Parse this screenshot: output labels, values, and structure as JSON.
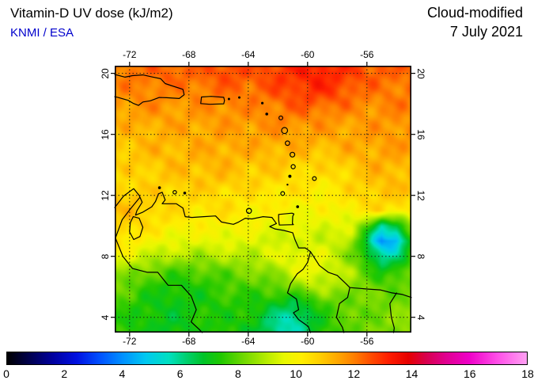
{
  "header": {
    "title": "Vitamin-D UV dose (kJ/m2)",
    "source": "KNMI / ESA",
    "product": "Cloud-modified",
    "date": "7 July 2021"
  },
  "colors": {
    "source_text": "#0000cc",
    "frame": "#000000",
    "background": "#ffffff"
  },
  "chart_data": {
    "type": "heatmap",
    "title": "Vitamin-D UV dose (kJ/m2)",
    "subtitle": "Cloud-modified, 7 July 2021",
    "units": "kJ/m2",
    "lon_range": [
      -73,
      -53
    ],
    "lat_range": [
      3,
      20.5
    ],
    "x_ticks": [
      -72,
      -68,
      -64,
      -60,
      -56
    ],
    "x_tick_labels": [
      "-72",
      "-68",
      "-64",
      "-60",
      "-56"
    ],
    "y_ticks": [
      20,
      16,
      12,
      8,
      4
    ],
    "y_tick_labels": [
      "20",
      "16",
      "12",
      "8",
      "4"
    ],
    "grid": {
      "dotted": true,
      "lons": [
        -72,
        -68,
        -64,
        -60,
        -56
      ],
      "lats": [
        4,
        8,
        12,
        16,
        20
      ]
    },
    "grid_values": {
      "lons_start": -73,
      "lons_step": 1,
      "lats_start": 21,
      "lats_step": -1,
      "values": [
        [
          12.0,
          12.1,
          12.2,
          12.3,
          12.3,
          12.3,
          12.4,
          12.6,
          12.7,
          12.5,
          12.6,
          12.9,
          13.1,
          13.3,
          13.3,
          13.1,
          12.8,
          12.5,
          12.4,
          12.3,
          12.3
        ],
        [
          12.0,
          12.1,
          12.2,
          12.3,
          12.4,
          12.3,
          12.4,
          12.6,
          12.7,
          12.5,
          12.6,
          12.8,
          13.0,
          13.2,
          13.2,
          13.0,
          12.8,
          12.5,
          12.4,
          12.3,
          12.3
        ],
        [
          11.8,
          11.9,
          12.0,
          12.0,
          12.0,
          12.0,
          12.1,
          12.2,
          12.3,
          12.2,
          12.4,
          12.6,
          12.8,
          13.0,
          13.0,
          12.8,
          12.5,
          12.2,
          12.1,
          12.1,
          12.1
        ],
        [
          11.6,
          11.7,
          11.8,
          11.8,
          11.7,
          11.7,
          11.8,
          11.9,
          12.0,
          11.9,
          12.0,
          12.2,
          12.4,
          12.5,
          12.4,
          12.3,
          12.0,
          11.9,
          11.9,
          12.0,
          12.0
        ],
        [
          11.4,
          11.4,
          11.5,
          11.5,
          11.5,
          11.5,
          11.6,
          11.6,
          11.7,
          11.7,
          11.8,
          11.9,
          11.9,
          11.9,
          11.8,
          11.7,
          11.6,
          11.6,
          11.7,
          11.8,
          11.8
        ],
        [
          11.0,
          11.1,
          11.2,
          11.3,
          11.3,
          11.4,
          11.4,
          11.5,
          11.5,
          11.5,
          11.6,
          11.6,
          11.6,
          11.5,
          11.5,
          11.4,
          11.5,
          11.6,
          11.6,
          11.7,
          11.7
        ],
        [
          10.9,
          11.0,
          11.1,
          11.2,
          11.2,
          11.3,
          11.3,
          11.4,
          11.4,
          11.3,
          11.3,
          11.3,
          11.2,
          11.2,
          11.1,
          11.2,
          11.3,
          11.4,
          11.5,
          11.5,
          11.5
        ],
        [
          10.7,
          10.8,
          10.9,
          11.0,
          11.1,
          11.1,
          11.2,
          11.2,
          11.1,
          11.0,
          11.0,
          10.9,
          10.8,
          10.7,
          10.6,
          10.8,
          11.0,
          11.2,
          11.3,
          11.3,
          11.2
        ],
        [
          10.5,
          10.6,
          10.7,
          10.8,
          10.9,
          11.0,
          11.0,
          11.0,
          10.9,
          10.8,
          10.7,
          10.6,
          10.5,
          10.4,
          10.3,
          10.4,
          10.7,
          11.0,
          11.1,
          11.1,
          11.0
        ],
        [
          11.0,
          10.9,
          10.8,
          10.7,
          10.6,
          10.6,
          10.6,
          10.6,
          10.5,
          10.4,
          10.4,
          10.3,
          10.3,
          10.2,
          10.2,
          10.3,
          10.5,
          10.8,
          10.9,
          10.9,
          10.8
        ],
        [
          11.0,
          11.0,
          10.9,
          10.7,
          10.5,
          10.4,
          10.4,
          10.5,
          10.4,
          10.2,
          10.1,
          10.0,
          10.0,
          9.9,
          9.9,
          10.0,
          10.2,
          10.4,
          10.5,
          10.4,
          10.3
        ],
        [
          10.8,
          10.7,
          10.5,
          10.3,
          10.2,
          10.1,
          10.0,
          10.1,
          10.0,
          9.9,
          9.8,
          9.7,
          9.6,
          9.6,
          9.5,
          9.6,
          9.3,
          8.0,
          6.0,
          6.5,
          8.5
        ],
        [
          10.5,
          10.3,
          10.0,
          9.8,
          9.7,
          9.6,
          9.6,
          9.7,
          9.6,
          9.5,
          9.4,
          9.3,
          9.2,
          9.3,
          9.2,
          9.3,
          8.8,
          6.5,
          4.0,
          4.5,
          7.5
        ],
        [
          9.8,
          9.6,
          9.3,
          9.0,
          8.9,
          8.8,
          8.8,
          8.9,
          9.0,
          9.0,
          9.2,
          9.5,
          9.8,
          9.8,
          9.5,
          9.0,
          8.3,
          7.0,
          5.8,
          6.2,
          7.8
        ],
        [
          8.8,
          8.5,
          8.2,
          8.0,
          7.8,
          7.8,
          7.9,
          8.0,
          8.2,
          8.3,
          8.5,
          8.8,
          9.3,
          9.8,
          9.6,
          9.2,
          8.8,
          8.0,
          7.2,
          7.4,
          8.0
        ],
        [
          8.2,
          8.0,
          7.6,
          7.4,
          7.2,
          7.3,
          7.4,
          7.6,
          7.8,
          7.8,
          7.9,
          8.0,
          8.3,
          8.8,
          9.0,
          8.8,
          8.5,
          8.2,
          8.0,
          8.0,
          8.2
        ],
        [
          7.8,
          7.6,
          7.3,
          7.2,
          7.0,
          7.2,
          7.3,
          7.4,
          7.5,
          7.4,
          7.3,
          7.0,
          6.8,
          7.2,
          7.8,
          8.0,
          8.2,
          8.2,
          8.2,
          8.3,
          8.4
        ],
        [
          7.6,
          7.4,
          7.2,
          7.0,
          7.0,
          7.2,
          7.3,
          7.4,
          7.4,
          7.2,
          6.8,
          6.0,
          5.6,
          6.5,
          7.4,
          7.8,
          8.0,
          8.2,
          8.3,
          8.4,
          8.5
        ],
        [
          7.5,
          7.4,
          7.2,
          7.0,
          7.0,
          7.2,
          7.3,
          7.4,
          7.3,
          7.0,
          6.5,
          5.8,
          5.5,
          6.4,
          7.3,
          7.8,
          8.0,
          8.2,
          8.3,
          8.4,
          8.5
        ]
      ]
    },
    "colorbar": {
      "min": 0,
      "max": 18,
      "ticks": [
        0,
        2,
        4,
        6,
        8,
        10,
        12,
        14,
        16,
        18
      ],
      "stops": [
        [
          0,
          "#000000"
        ],
        [
          0.8,
          "#000050"
        ],
        [
          1.6,
          "#0000a0"
        ],
        [
          2.4,
          "#0010e0"
        ],
        [
          3.2,
          "#0050ff"
        ],
        [
          4,
          "#0090ff"
        ],
        [
          4.8,
          "#00c8f0"
        ],
        [
          5.6,
          "#00e0c0"
        ],
        [
          6.2,
          "#00d070"
        ],
        [
          6.8,
          "#00c428"
        ],
        [
          7.4,
          "#20c800"
        ],
        [
          8.2,
          "#70d800"
        ],
        [
          9,
          "#b8ec00"
        ],
        [
          9.6,
          "#e8f800"
        ],
        [
          10.2,
          "#ffee00"
        ],
        [
          10.8,
          "#ffd000"
        ],
        [
          11.4,
          "#ffaa00"
        ],
        [
          12,
          "#ff8000"
        ],
        [
          12.6,
          "#ff4c00"
        ],
        [
          13.2,
          "#ff1e00"
        ],
        [
          13.9,
          "#e60000"
        ],
        [
          14.5,
          "#d8004c"
        ],
        [
          15.2,
          "#e00090"
        ],
        [
          16,
          "#ee00c8"
        ],
        [
          17,
          "#ff50e8"
        ],
        [
          18,
          "#ffa0f2"
        ]
      ]
    },
    "coastlines": [
      [
        [
          -73,
          19.93
        ],
        [
          -72.3,
          19.75
        ],
        [
          -71.8,
          19.85
        ],
        [
          -71.1,
          19.9
        ],
        [
          -70.5,
          19.77
        ],
        [
          -69.9,
          19.65
        ],
        [
          -69.6,
          19.33
        ],
        [
          -69.2,
          19.2
        ],
        [
          -68.4,
          18.95
        ],
        [
          -68.32,
          18.6
        ],
        [
          -68.65,
          18.35
        ],
        [
          -69.5,
          18.4
        ],
        [
          -70.0,
          18.42
        ],
        [
          -70.6,
          18.2
        ],
        [
          -71.1,
          18.12
        ],
        [
          -71.4,
          17.9
        ],
        [
          -71.76,
          18.04
        ],
        [
          -72.1,
          18.23
        ],
        [
          -72.8,
          18.43
        ],
        [
          -73,
          18.47
        ]
      ],
      [
        [
          -67.15,
          18.45
        ],
        [
          -66.5,
          18.49
        ],
        [
          -65.65,
          18.43
        ],
        [
          -65.6,
          18.22
        ],
        [
          -65.65,
          18.0
        ],
        [
          -66.6,
          17.97
        ],
        [
          -67.2,
          18.02
        ],
        [
          -67.15,
          18.45
        ]
      ],
      [
        [
          -61.95,
          10.75
        ],
        [
          -61.05,
          10.83
        ],
        [
          -60.92,
          10.78
        ],
        [
          -61.0,
          10.62
        ],
        [
          -61.02,
          10.15
        ],
        [
          -60.95,
          10.08
        ],
        [
          -61.9,
          10.05
        ],
        [
          -61.95,
          10.4
        ],
        [
          -61.95,
          10.75
        ]
      ],
      [
        [
          -73,
          11.2
        ],
        [
          -72.4,
          11.95
        ],
        [
          -71.72,
          12.44
        ],
        [
          -71.35,
          12.0
        ],
        [
          -71.15,
          11.55
        ],
        [
          -71.5,
          11.0
        ],
        [
          -71.6,
          10.7
        ],
        [
          -71.1,
          10.9
        ],
        [
          -70.5,
          11.25
        ],
        [
          -70.25,
          11.6
        ],
        [
          -70.05,
          12.1
        ],
        [
          -69.8,
          12.2
        ],
        [
          -69.6,
          11.7
        ],
        [
          -69.8,
          11.45
        ],
        [
          -69.2,
          11.45
        ],
        [
          -68.85,
          11.45
        ],
        [
          -68.4,
          11.17
        ],
        [
          -68.25,
          10.6
        ],
        [
          -67.8,
          10.55
        ],
        [
          -67.0,
          10.6
        ],
        [
          -66.2,
          10.65
        ],
        [
          -65.8,
          10.25
        ],
        [
          -65.0,
          10.1
        ],
        [
          -64.65,
          10.25
        ],
        [
          -64.2,
          10.5
        ],
        [
          -63.75,
          10.45
        ],
        [
          -63.0,
          10.6
        ],
        [
          -62.4,
          10.55
        ],
        [
          -62.1,
          10.15
        ],
        [
          -62.55,
          9.95
        ],
        [
          -62.2,
          9.8
        ],
        [
          -61.6,
          9.7
        ],
        [
          -61.0,
          9.55
        ],
        [
          -60.85,
          9.1
        ],
        [
          -60.6,
          8.55
        ],
        [
          -60.15,
          8.55
        ],
        [
          -59.8,
          8.3
        ],
        [
          -59.2,
          7.4
        ],
        [
          -58.6,
          6.95
        ],
        [
          -58.0,
          6.75
        ],
        [
          -57.4,
          6.2
        ],
        [
          -57.15,
          5.95
        ],
        [
          -56.5,
          5.9
        ],
        [
          -55.9,
          5.85
        ],
        [
          -55.1,
          5.8
        ],
        [
          -54.3,
          5.6
        ],
        [
          -53.6,
          5.5
        ],
        [
          -53,
          5.3
        ]
      ],
      [
        [
          -71.75,
          10.6
        ],
        [
          -71.35,
          10.5
        ],
        [
          -71.1,
          9.9
        ],
        [
          -71.3,
          9.3
        ],
        [
          -71.72,
          9.1
        ],
        [
          -72.0,
          9.6
        ],
        [
          -71.95,
          10.2
        ],
        [
          -71.75,
          10.6
        ]
      ]
    ],
    "borders": [
      [
        [
          -71.32,
          11.85
        ],
        [
          -71.95,
          11.1
        ],
        [
          -72.5,
          10.4
        ],
        [
          -72.95,
          9.2
        ],
        [
          -72.7,
          8.6
        ],
        [
          -72.45,
          8.0
        ],
        [
          -71.8,
          7.2
        ],
        [
          -70.8,
          6.95
        ],
        [
          -70.1,
          6.95
        ],
        [
          -69.4,
          6.1
        ],
        [
          -68.5,
          6.1
        ],
        [
          -67.85,
          5.4
        ],
        [
          -67.5,
          4.5
        ],
        [
          -67.85,
          3.7
        ],
        [
          -67.3,
          3.2
        ],
        [
          -67.1,
          3.0
        ]
      ],
      [
        [
          -59.8,
          8.3
        ],
        [
          -60.0,
          7.6
        ],
        [
          -60.3,
          7.15
        ],
        [
          -60.7,
          6.85
        ],
        [
          -61.15,
          6.2
        ],
        [
          -61.35,
          5.6
        ],
        [
          -60.75,
          5.2
        ],
        [
          -60.6,
          4.5
        ],
        [
          -60.95,
          4.3
        ],
        [
          -60.6,
          3.85
        ],
        [
          -59.95,
          3.4
        ],
        [
          -59.8,
          3.0
        ]
      ],
      [
        [
          -57.15,
          5.95
        ],
        [
          -57.3,
          5.3
        ],
        [
          -57.85,
          4.9
        ],
        [
          -58.05,
          4.0
        ],
        [
          -57.65,
          3.35
        ],
        [
          -57.55,
          3.0
        ]
      ],
      [
        [
          -54.0,
          5.6
        ],
        [
          -54.45,
          4.9
        ],
        [
          -54.35,
          4.0
        ],
        [
          -54.15,
          3.3
        ],
        [
          -54.2,
          3.0
        ]
      ]
    ],
    "islands": [
      [
        -65.3,
        18.32,
        1.5
      ],
      [
        -64.6,
        18.42,
        1.5
      ],
      [
        -63.05,
        18.05,
        1.6
      ],
      [
        -62.75,
        17.33,
        1.8
      ],
      [
        -61.8,
        17.08,
        2.4
      ],
      [
        -61.55,
        16.25,
        3.8
      ],
      [
        -61.35,
        15.42,
        2.8
      ],
      [
        -61.02,
        14.67,
        3.0
      ],
      [
        -60.97,
        13.88,
        2.6
      ],
      [
        -61.19,
        13.25,
        2.0
      ],
      [
        -61.35,
        12.7,
        1.2
      ],
      [
        -61.68,
        12.12,
        2.4
      ],
      [
        -59.54,
        13.1,
        2.4
      ],
      [
        -60.67,
        11.25,
        1.8
      ],
      [
        -63.95,
        10.98,
        3.2
      ],
      [
        -69.98,
        12.5,
        1.8
      ],
      [
        -68.95,
        12.2,
        2.2
      ],
      [
        -68.28,
        12.15,
        1.8
      ]
    ]
  }
}
